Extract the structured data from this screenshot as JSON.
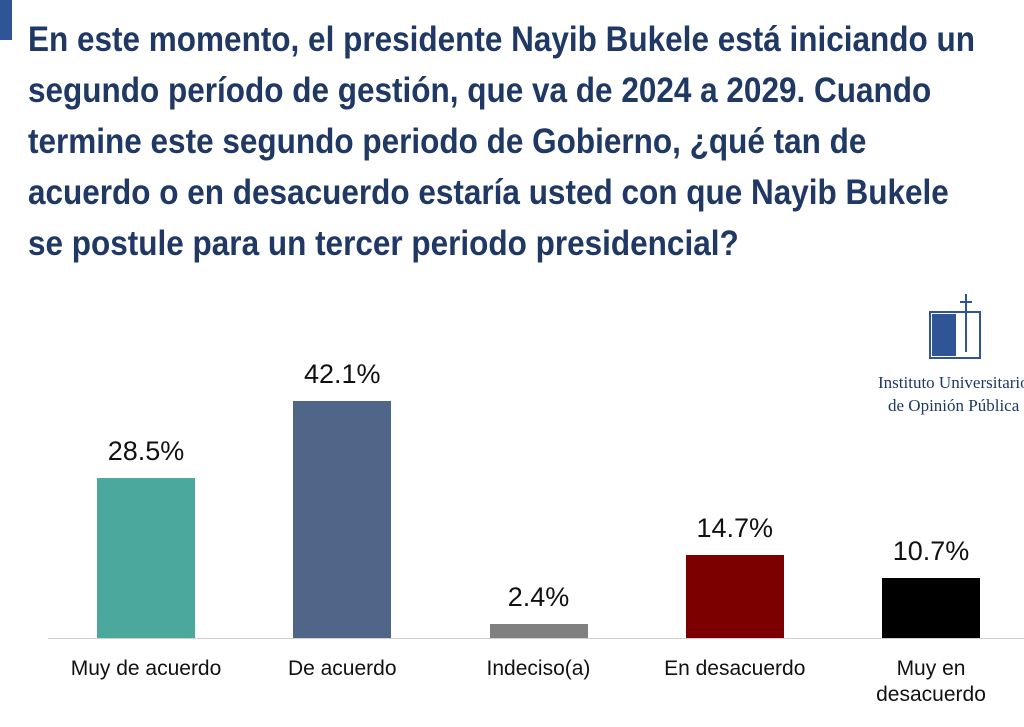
{
  "chart_data": {
    "type": "bar",
    "title": "En este momento, el presidente Nayib Bukele está iniciando un segundo período de gestión, que va de 2024 a 2029. Cuando termine este segundo periodo de Gobierno, ¿qué tan de acuerdo o en desacuerdo estaría usted con que Nayib Bukele se postule para un tercer periodo presidencial?",
    "categories": [
      "Muy de acuerdo",
      "De acuerdo",
      "Indeciso(a)",
      "En desacuerdo",
      "Muy en desacuerdo"
    ],
    "values": [
      28.5,
      42.1,
      2.4,
      14.7,
      10.7
    ],
    "value_labels": [
      "28.5%",
      "42.1%",
      "2.4%",
      "14.7%",
      "10.7%"
    ],
    "colors": [
      "#4aa89c",
      "#4f6688",
      "#808080",
      "#7d0000",
      "#000000"
    ]
  },
  "logo": [
    "Instituto Universitario",
    "de Opinión Pública"
  ]
}
